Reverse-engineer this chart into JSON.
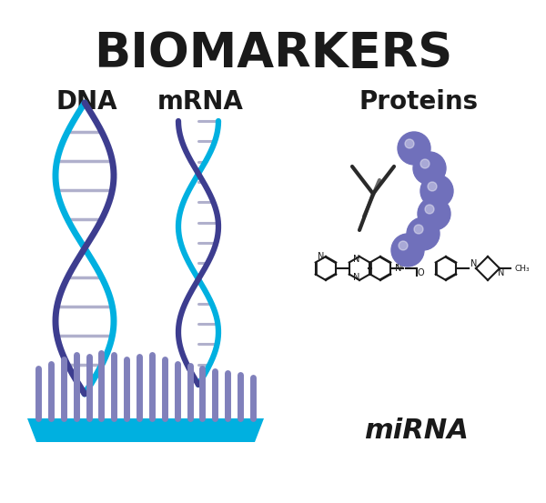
{
  "title": "BIOMARKERS",
  "title_fontsize": 38,
  "title_color": "#1a1a1a",
  "label_dna": "DNA",
  "label_mrna": "mRNA",
  "label_proteins": "Proteins",
  "label_mirna": "miRNA",
  "label_fontsize": 20,
  "label_color": "#1a1a1a",
  "background_color": "#ffffff",
  "dna_blue": "#00b0e0",
  "dna_purple": "#3d3d8f",
  "dna_rung": "#b0b0cc",
  "protein_color": "#7070bb",
  "antibody_color": "#2a2a2a",
  "mirna_bar_color": "#8080bb",
  "mirna_wave_color": "#00b0e0"
}
